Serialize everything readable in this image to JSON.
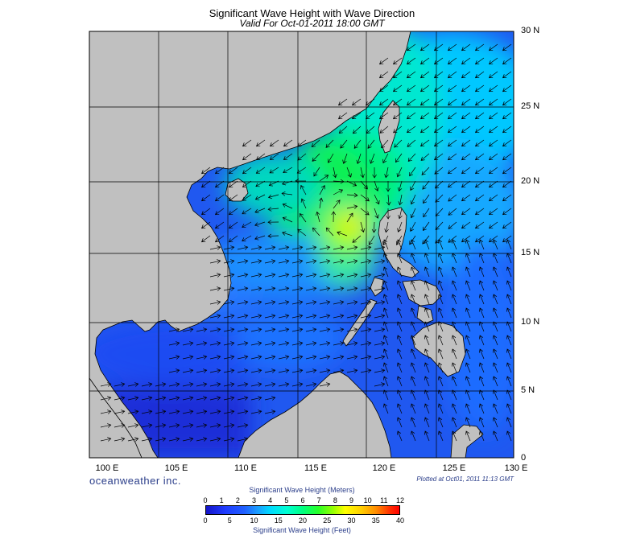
{
  "title": "Significant Wave Height with Wave Direction",
  "subtitle": "Valid For Oct-01-2011 18:00 GMT",
  "map": {
    "lon_range": [
      100,
      130
    ],
    "lat_range": [
      0,
      30
    ],
    "lat_labels": [
      "30 N",
      "25 N",
      "20 N",
      "15 N",
      "10 N",
      "5 N",
      "0"
    ],
    "lon_labels": [
      "100 E",
      "105 E",
      "110 E",
      "115 E",
      "120 E",
      "125 E",
      "130 E"
    ],
    "colors": {
      "land": "#c0c0c0",
      "coast": "#000000",
      "grid": "#000000",
      "arrow": "#000000"
    }
  },
  "brand": "oceanweather inc.",
  "plotted_text": "Plotted at Oct01, 2011 11:13 GMT",
  "colorbar": {
    "meters_label": "Significant Wave Height (Meters)",
    "feet_label": "Significant Wave Height (Feet)",
    "meters_ticks": [
      "0",
      "1",
      "2",
      "3",
      "4",
      "5",
      "6",
      "7",
      "8",
      "9",
      "10",
      "11",
      "12"
    ],
    "feet_ticks": [
      "0",
      "5",
      "10",
      "15",
      "20",
      "25",
      "30",
      "35",
      "40"
    ]
  }
}
